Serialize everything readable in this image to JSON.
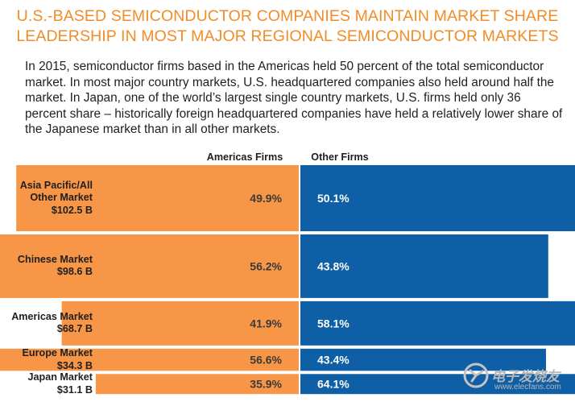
{
  "title": {
    "line1": "U.S.-BASED SEMICONDUCTOR COMPANIES MAINTAIN MARKET SHARE",
    "line2": "LEADERSHIP IN MOST MAJOR REGIONAL SEMICONDUCTOR MARKETS"
  },
  "intro": "In 2015, semiconductor firms based in the Americas held 50 percent of the total semiconductor market.  In most major country markets, U.S. headquartered companies also held around half the market.  In Japan, one of the world’s largest single country markets, U.S. firms held only 36 percent share – historically foreign headquartered companies have held a relatively lower share of the Japanese market than in all other markets.",
  "colors": {
    "americas": "#f79646",
    "other": "#0f5fa6",
    "title": "#f28c28"
  },
  "watermark": {
    "text": "电子发烧友",
    "url": "www.elecfans.com"
  },
  "chart_data": {
    "type": "bar",
    "orientation": "horizontal-diverging",
    "series": [
      {
        "name": "Americas Firms",
        "values": [
          49.9,
          56.2,
          41.9,
          56.6,
          35.9
        ]
      },
      {
        "name": "Other Firms",
        "values": [
          50.1,
          43.8,
          58.1,
          43.4,
          64.1
        ]
      }
    ],
    "categories": [
      {
        "lines": [
          "Asia Pacific/All",
          "Other Market",
          "$102.5 B"
        ],
        "size": 102.5
      },
      {
        "lines": [
          "Chinese Market",
          "$98.6 B"
        ],
        "size": 98.6
      },
      {
        "lines": [
          "Americas Market",
          "$68.7 B"
        ],
        "size": 68.7
      },
      {
        "lines": [
          "Europe Market",
          "$34.3 B"
        ],
        "size": 34.3
      },
      {
        "lines": [
          "Japan Market",
          "$31.1 B"
        ],
        "size": 31.1
      }
    ],
    "value_labels": {
      "americas": [
        "49.9%",
        "56.2%",
        "41.9%",
        "56.6%",
        "35.9%"
      ],
      "other": [
        "50.1%",
        "43.8%",
        "58.1%",
        "43.4%",
        "64.1%"
      ]
    },
    "unit": "percent market share"
  }
}
